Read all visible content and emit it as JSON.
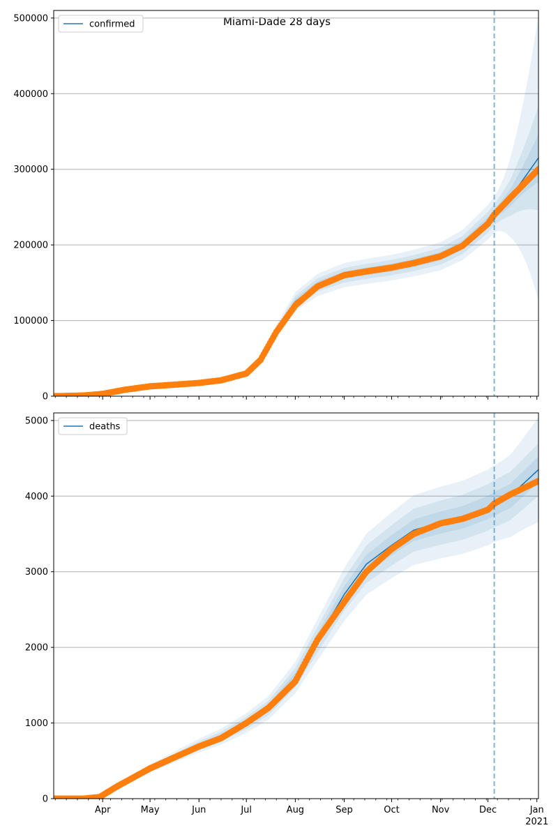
{
  "figure": {
    "title": "Miami-Dade 28 days",
    "colors": {
      "model": "#1f77b4",
      "observed": "#ff7f0e",
      "band": "#1f77b4",
      "grid": "#b0b0b0",
      "cutoff": "#1f77b4"
    }
  },
  "chart_data": [
    {
      "type": "line",
      "legend": "confirmed",
      "legend_placement": "top-left",
      "grid": "horizontal",
      "x_range": [
        "2020-03-01",
        "2021-01-02"
      ],
      "ylim": [
        0,
        510000
      ],
      "yticks": [
        0,
        100000,
        200000,
        300000,
        400000,
        500000
      ],
      "ytick_labels": [
        "0",
        "100000",
        "200000",
        "300000",
        "400000",
        "500000"
      ],
      "forecast_start": "2020-12-05",
      "model_knots": {
        "x": [
          "2020-03-01",
          "2020-03-10",
          "2020-03-20",
          "2020-04-01",
          "2020-04-15",
          "2020-05-01",
          "2020-05-15",
          "2020-06-01",
          "2020-06-15",
          "2020-07-01",
          "2020-07-10",
          "2020-07-20",
          "2020-08-01",
          "2020-08-15",
          "2020-09-01",
          "2020-09-15",
          "2020-10-01",
          "2020-10-15",
          "2020-11-01",
          "2020-11-15",
          "2020-12-01",
          "2020-12-05",
          "2020-12-15",
          "2021-01-02"
        ],
        "y": [
          0,
          500,
          1000,
          3000,
          8000,
          13000,
          15000,
          18000,
          21000,
          30000,
          50000,
          85000,
          125000,
          147000,
          160000,
          165000,
          170000,
          176000,
          185000,
          200000,
          230000,
          240000,
          262000,
          315000
        ]
      },
      "observed_knots": {
        "x": [
          "2020-03-01",
          "2020-03-10",
          "2020-03-20",
          "2020-04-01",
          "2020-04-15",
          "2020-05-01",
          "2020-05-15",
          "2020-06-01",
          "2020-06-15",
          "2020-07-01",
          "2020-07-10",
          "2020-07-20",
          "2020-08-01",
          "2020-08-15",
          "2020-09-01",
          "2020-09-15",
          "2020-10-01",
          "2020-10-15",
          "2020-11-01",
          "2020-11-15",
          "2020-12-01",
          "2020-12-05",
          "2020-12-15",
          "2021-01-02"
        ],
        "y": [
          0,
          400,
          900,
          3000,
          8500,
          13000,
          15000,
          17500,
          21000,
          30000,
          48000,
          85000,
          120000,
          145000,
          160000,
          165000,
          170000,
          176000,
          185000,
          199000,
          228000,
          240000,
          262000,
          300000
        ]
      },
      "band_factors": {
        "inner": [
          0.03,
          0.1
        ],
        "middle": [
          0.06,
          0.22
        ],
        "outer": [
          0.1,
          0.6
        ]
      }
    },
    {
      "type": "line",
      "legend": "deaths",
      "legend_placement": "top-left",
      "grid": "horizontal",
      "x_range": [
        "2020-03-01",
        "2021-01-02"
      ],
      "ylim": [
        0,
        5100
      ],
      "yticks": [
        0,
        1000,
        2000,
        3000,
        4000,
        5000
      ],
      "ytick_labels": [
        "0",
        "1000",
        "2000",
        "3000",
        "4000",
        "5000"
      ],
      "forecast_start": "2020-12-05",
      "xticks": [
        "2020-04-01",
        "2020-05-01",
        "2020-06-01",
        "2020-07-01",
        "2020-08-01",
        "2020-09-01",
        "2020-10-01",
        "2020-11-01",
        "2020-12-01",
        "2021-01-01"
      ],
      "xtick_labels": [
        "Apr",
        "May",
        "Jun",
        "Jul",
        "Aug",
        "Sep",
        "Oct",
        "Nov",
        "Dec",
        "Jan"
      ],
      "x_year_label": "2021",
      "model_knots": {
        "x": [
          "2020-03-01",
          "2020-03-20",
          "2020-03-30",
          "2020-04-10",
          "2020-05-01",
          "2020-06-01",
          "2020-06-15",
          "2020-07-01",
          "2020-07-15",
          "2020-08-01",
          "2020-08-15",
          "2020-09-01",
          "2020-09-15",
          "2020-10-01",
          "2020-10-15",
          "2020-11-01",
          "2020-11-15",
          "2020-12-01",
          "2020-12-05",
          "2020-12-15",
          "2021-01-02"
        ],
        "y": [
          0,
          0,
          20,
          150,
          400,
          700,
          820,
          1000,
          1200,
          1600,
          2100,
          2700,
          3100,
          3350,
          3550,
          3650,
          3720,
          3850,
          3900,
          4000,
          4350
        ]
      },
      "observed_knots": {
        "x": [
          "2020-03-01",
          "2020-03-20",
          "2020-03-30",
          "2020-04-10",
          "2020-05-01",
          "2020-06-01",
          "2020-06-15",
          "2020-07-01",
          "2020-07-15",
          "2020-08-01",
          "2020-08-15",
          "2020-09-01",
          "2020-09-15",
          "2020-10-01",
          "2020-10-15",
          "2020-11-01",
          "2020-11-15",
          "2020-12-01",
          "2020-12-05",
          "2020-12-15",
          "2021-01-02"
        ],
        "y": [
          0,
          0,
          20,
          160,
          400,
          690,
          800,
          1000,
          1200,
          1550,
          2100,
          2600,
          3000,
          3300,
          3500,
          3640,
          3700,
          3820,
          3900,
          4020,
          4200
        ]
      },
      "band_factors": {
        "inner": [
          0.04,
          0.04
        ],
        "middle": [
          0.08,
          0.08
        ],
        "outer": [
          0.13,
          0.16
        ]
      }
    }
  ]
}
